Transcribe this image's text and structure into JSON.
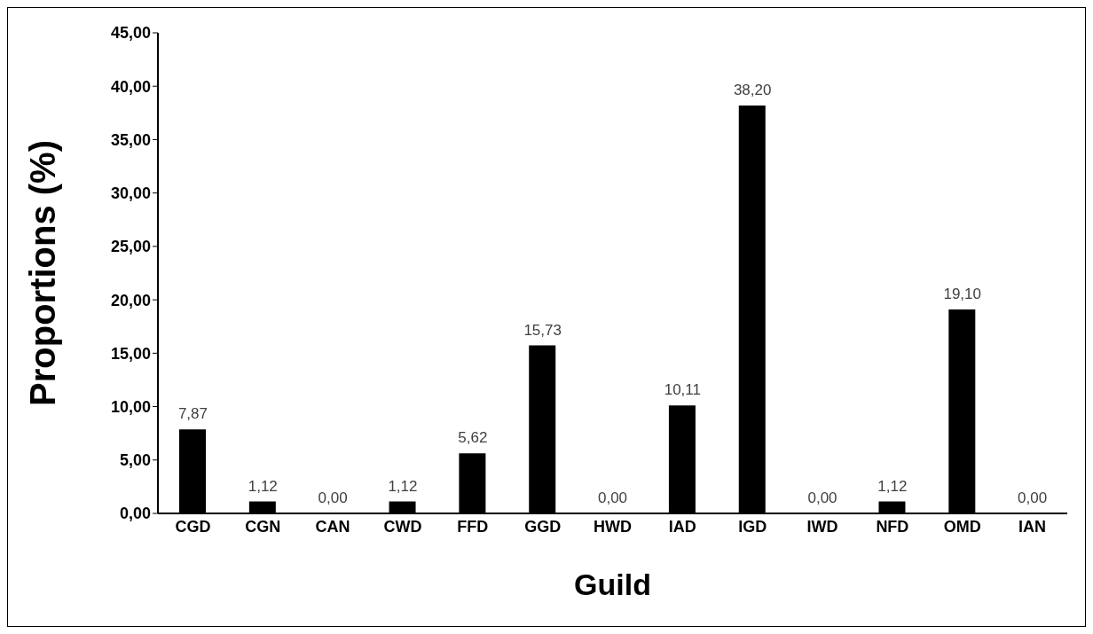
{
  "chart_data": {
    "type": "bar",
    "xlabel": "Guild",
    "ylabel": "Proportions (%)",
    "categories": [
      "CGD",
      "CGN",
      "CAN",
      "CWD",
      "FFD",
      "GGD",
      "HWD",
      "IAD",
      "IGD",
      "IWD",
      "NFD",
      "OMD",
      "IAN"
    ],
    "values": [
      7.87,
      1.12,
      0,
      1.12,
      5.62,
      15.73,
      0,
      10.11,
      38.2,
      0,
      1.12,
      19.1,
      0
    ],
    "value_labels": [
      "7,87",
      "1,12",
      "0,00",
      "1,12",
      "5,62",
      "15,73",
      "0,00",
      "10,11",
      "38,20",
      "0,00",
      "1,12",
      "19,10",
      "0,00"
    ],
    "color": "#000000",
    "ylim": [
      0,
      45
    ],
    "yticks": [
      {
        "value": 0,
        "label": "0,00"
      },
      {
        "value": 5,
        "label": "5,00"
      },
      {
        "value": 10,
        "label": "10,00"
      },
      {
        "value": 15,
        "label": "15,00"
      },
      {
        "value": 20,
        "label": "20,00"
      },
      {
        "value": 25,
        "label": "25,00"
      },
      {
        "value": 30,
        "label": "30,00"
      },
      {
        "value": 35,
        "label": "35,00"
      },
      {
        "value": 40,
        "label": "40,00"
      },
      {
        "value": 45,
        "label": "45,00"
      }
    ],
    "grid": false,
    "legend": false
  }
}
